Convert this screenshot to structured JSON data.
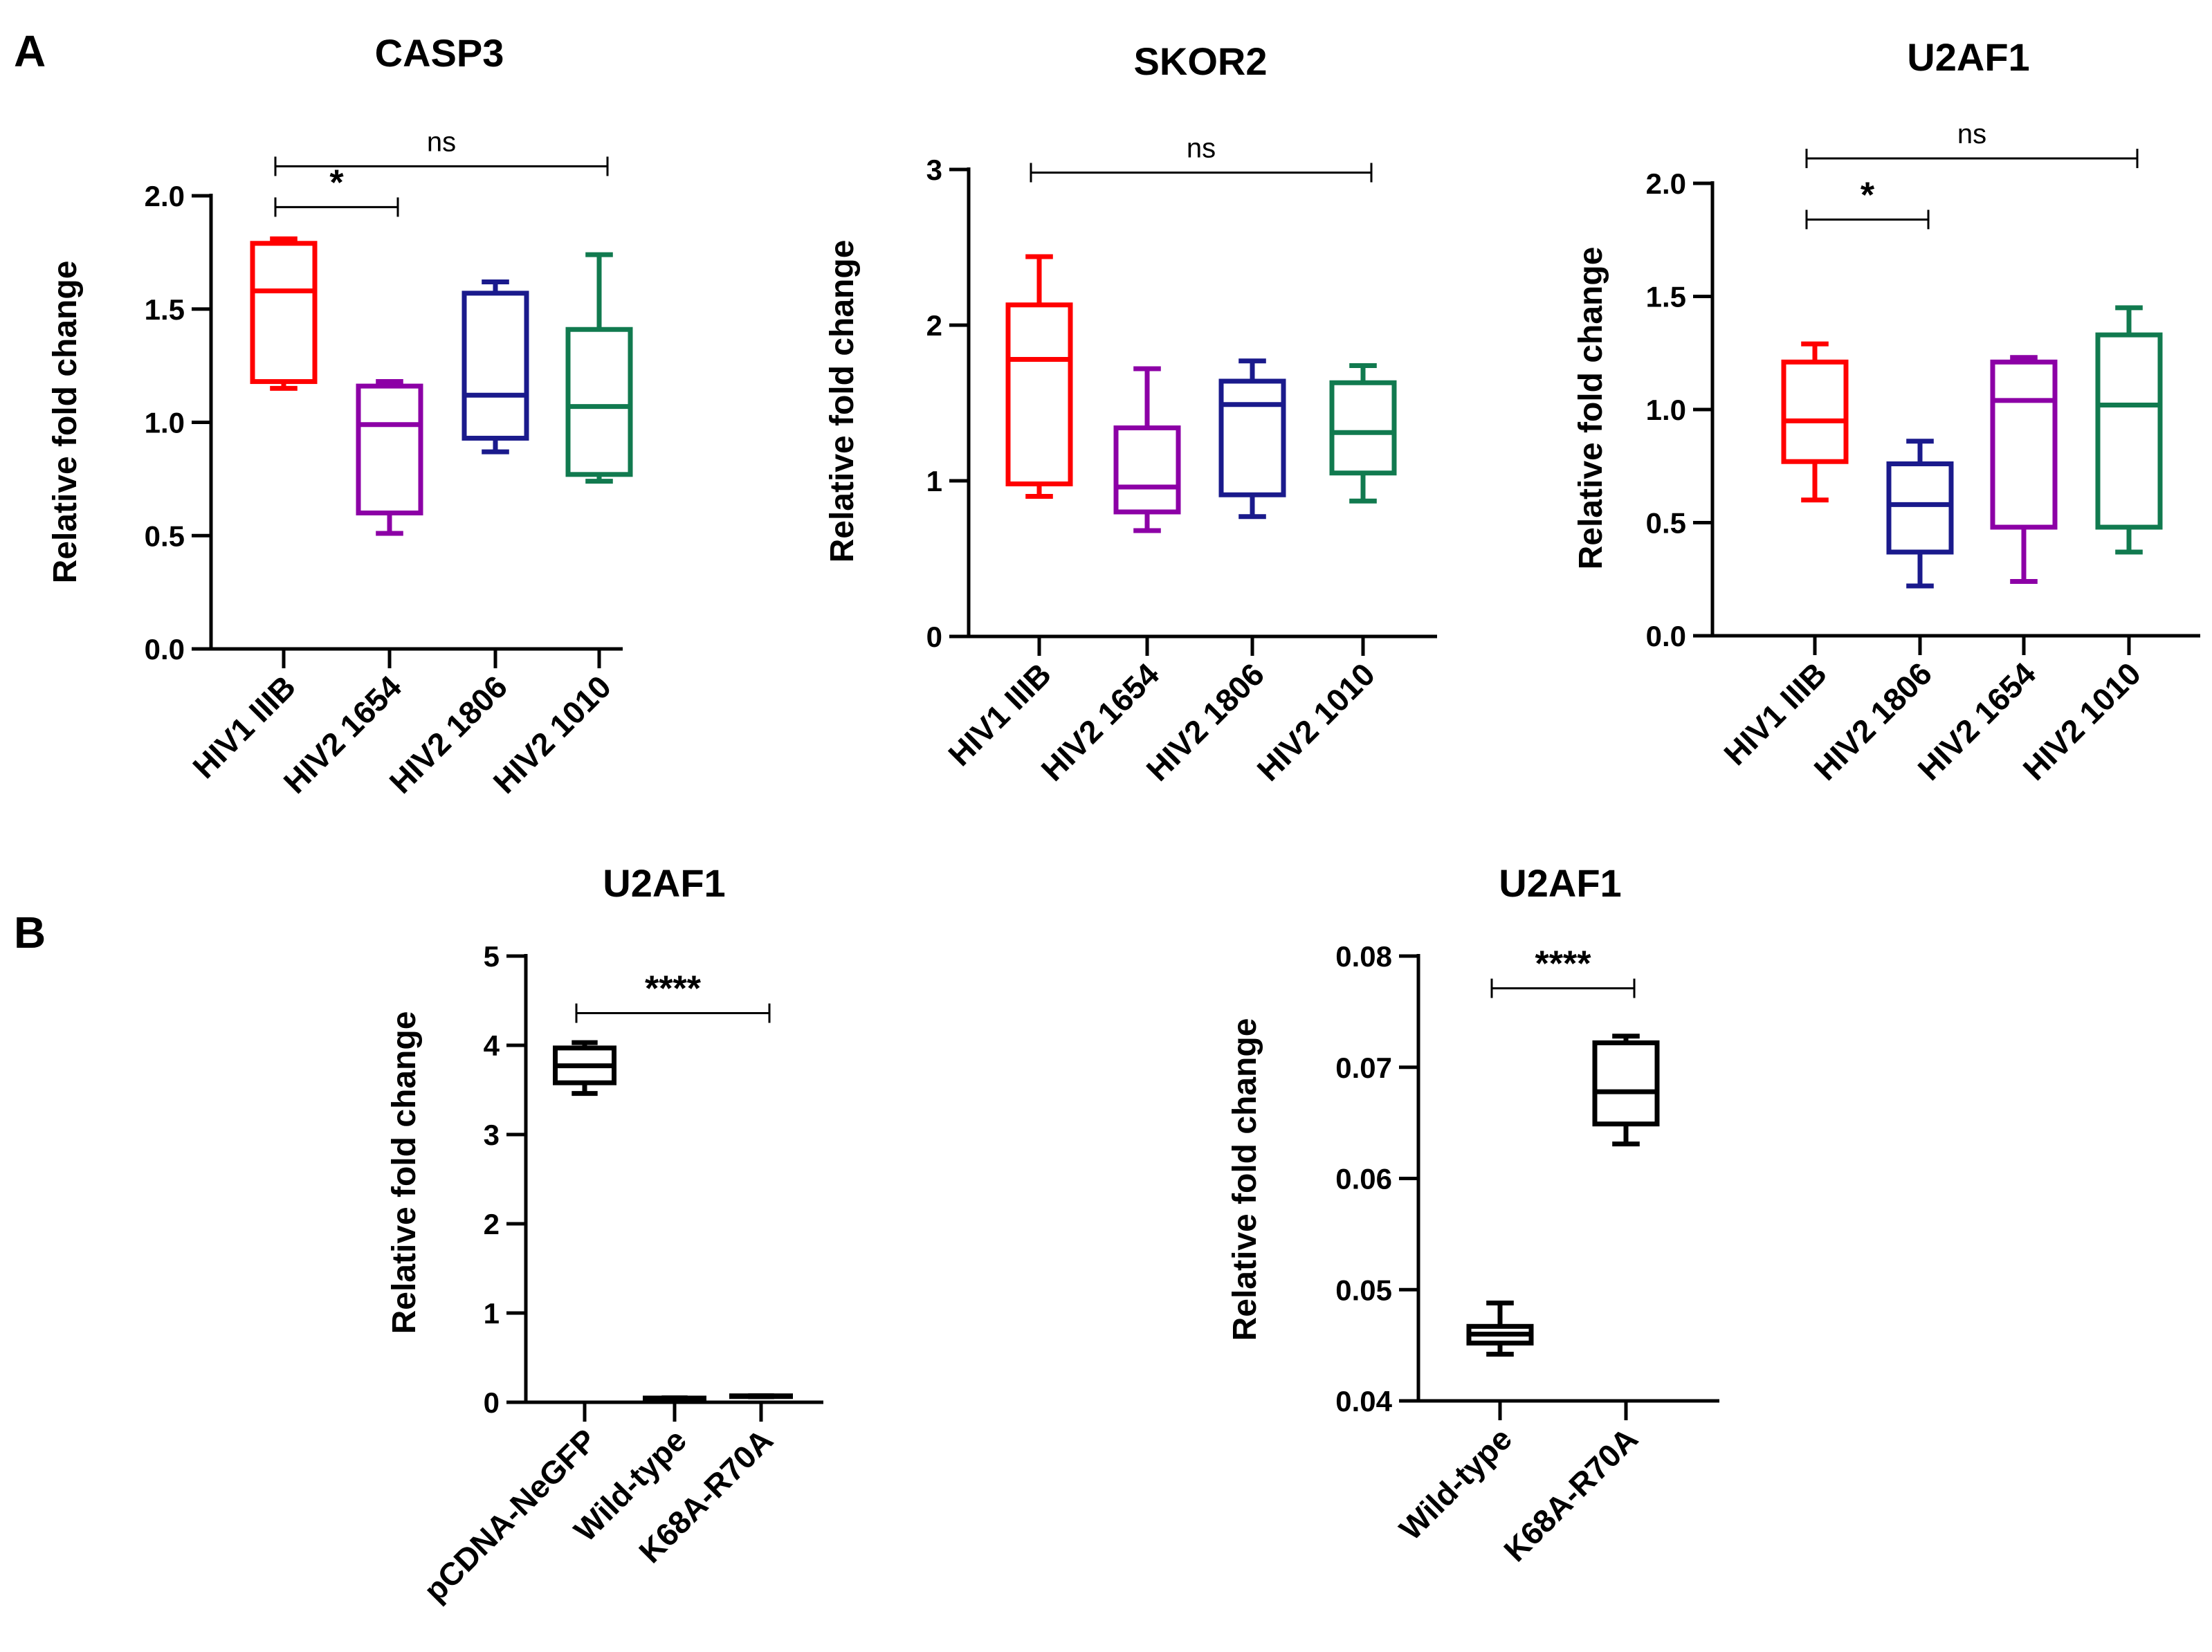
{
  "panels": [
    {
      "label": "A"
    },
    {
      "label": "B"
    }
  ],
  "colors": {
    "red": "#ff0000",
    "purple": "#8c00a6",
    "navy": "#1a1a8c",
    "green": "#117a4f",
    "black": "#000000"
  },
  "chart_data": [
    {
      "type": "box",
      "panel": "A",
      "title": "CASP3",
      "ylabel": "Relative fold change",
      "ylim": [
        0,
        2.0
      ],
      "yticks": [
        "0.0",
        "0.5",
        "1.0",
        "1.5",
        "2.0"
      ],
      "yticks_values": [
        0,
        0.5,
        1.0,
        1.5,
        2.0
      ],
      "categories": [
        "HIV1 IIIB",
        "HIV2 1654",
        "HIV2 1806",
        "HIV2 1010"
      ],
      "series": [
        {
          "name": "HIV1 IIIB",
          "color": "#ff0000",
          "min": 1.15,
          "q1": 1.18,
          "median": 1.58,
          "q3": 1.79,
          "max": 1.81
        },
        {
          "name": "HIV2 1654",
          "color": "#8c00a6",
          "min": 0.51,
          "q1": 0.6,
          "median": 0.99,
          "q3": 1.16,
          "max": 1.18
        },
        {
          "name": "HIV2 1806",
          "color": "#1a1a8c",
          "min": 0.87,
          "q1": 0.93,
          "median": 1.12,
          "q3": 1.57,
          "max": 1.62
        },
        {
          "name": "HIV2 1010",
          "color": "#117a4f",
          "min": 0.74,
          "q1": 0.77,
          "median": 1.07,
          "q3": 1.41,
          "max": 1.74
        }
      ],
      "significance": [
        {
          "from": 0,
          "to": 1,
          "label": "*",
          "y": 1.95
        },
        {
          "from": 0,
          "to": 3,
          "label": "ns",
          "y": 2.13
        }
      ]
    },
    {
      "type": "box",
      "panel": "A",
      "title": "SKOR2",
      "ylabel": "Relative fold change",
      "ylim": [
        0,
        3
      ],
      "yticks": [
        "0",
        "1",
        "2",
        "3"
      ],
      "yticks_values": [
        0,
        1,
        2,
        3
      ],
      "categories": [
        "HIV1 IIIB",
        "HIV2 1654",
        "HIV2 1806",
        "HIV2 1010"
      ],
      "series": [
        {
          "name": "HIV1 IIIB",
          "color": "#ff0000",
          "min": 0.9,
          "q1": 0.98,
          "median": 1.78,
          "q3": 2.13,
          "max": 2.44
        },
        {
          "name": "HIV2 1654",
          "color": "#8c00a6",
          "min": 0.68,
          "q1": 0.8,
          "median": 0.96,
          "q3": 1.34,
          "max": 1.72
        },
        {
          "name": "HIV2 1806",
          "color": "#1a1a8c",
          "min": 0.77,
          "q1": 0.91,
          "median": 1.49,
          "q3": 1.64,
          "max": 1.77
        },
        {
          "name": "HIV2 1010",
          "color": "#117a4f",
          "min": 0.87,
          "q1": 1.05,
          "median": 1.31,
          "q3": 1.63,
          "max": 1.74
        }
      ],
      "significance": [
        {
          "from": 0,
          "to": 3,
          "label": "ns",
          "y": 2.98
        }
      ]
    },
    {
      "type": "box",
      "panel": "A",
      "title": "U2AF1",
      "ylabel": "Relative fold change",
      "ylim": [
        0,
        2.0
      ],
      "yticks": [
        "0.0",
        "0.5",
        "1.0",
        "1.5",
        "2.0"
      ],
      "yticks_values": [
        0,
        0.5,
        1.0,
        1.5,
        2.0
      ],
      "categories": [
        "HIV1 IIIB",
        "HIV2 1806",
        "HIV2 1654",
        "HIV2 1010"
      ],
      "series": [
        {
          "name": "HIV1 IIIB",
          "color": "#ff0000",
          "min": 0.6,
          "q1": 0.77,
          "median": 0.95,
          "q3": 1.21,
          "max": 1.29
        },
        {
          "name": "HIV2 1806",
          "color": "#1a1a8c",
          "min": 0.22,
          "q1": 0.37,
          "median": 0.58,
          "q3": 0.76,
          "max": 0.86
        },
        {
          "name": "HIV2 1654",
          "color": "#8c00a6",
          "min": 0.24,
          "q1": 0.48,
          "median": 1.04,
          "q3": 1.21,
          "max": 1.23
        },
        {
          "name": "HIV2 1010",
          "color": "#117a4f",
          "min": 0.37,
          "q1": 0.48,
          "median": 1.02,
          "q3": 1.33,
          "max": 1.45
        }
      ],
      "significance": [
        {
          "from": 0,
          "to": 1,
          "label": "*",
          "y": 1.84
        },
        {
          "from": 0,
          "to": 3,
          "label": "ns",
          "y": 2.11
        }
      ]
    },
    {
      "type": "box",
      "panel": "B",
      "title": "U2AF1",
      "ylabel": "Relative fold change",
      "ylim": [
        0,
        5
      ],
      "yticks": [
        "0",
        "1",
        "2",
        "3",
        "4",
        "5"
      ],
      "yticks_values": [
        0,
        1,
        2,
        3,
        4,
        5
      ],
      "categories": [
        "pCDNA-NeGFP",
        "Wild-type",
        "K68A-R70A"
      ],
      "series": [
        {
          "name": "pCDNA-NeGFP",
          "color": "#000000",
          "min": 3.46,
          "q1": 3.58,
          "median": 3.77,
          "q3": 3.97,
          "max": 4.03
        },
        {
          "name": "Wild-type",
          "color": "#000000",
          "min": 0.045,
          "q1": 0.046,
          "median": 0.046,
          "q3": 0.047,
          "max": 0.049
        },
        {
          "name": "K68A-R70A",
          "color": "#000000",
          "min": 0.063,
          "q1": 0.065,
          "median": 0.068,
          "q3": 0.072,
          "max": 0.073
        }
      ],
      "significance": [
        {
          "from": 0,
          "to": 2,
          "label": "****",
          "y": 4.36
        }
      ]
    },
    {
      "type": "box",
      "panel": "B",
      "title": "U2AF1",
      "ylabel": "Relative fold change",
      "ylim": [
        0.04,
        0.08
      ],
      "yticks": [
        "0.04",
        "0.05",
        "0.06",
        "0.07",
        "0.08"
      ],
      "yticks_values": [
        0.04,
        0.05,
        0.06,
        0.07,
        0.08
      ],
      "categories": [
        "Wild-type",
        "K68A-R70A"
      ],
      "series": [
        {
          "name": "Wild-type",
          "color": "#000000",
          "min": 0.0442,
          "q1": 0.0452,
          "median": 0.046,
          "q3": 0.0467,
          "max": 0.0488
        },
        {
          "name": "K68A-R70A",
          "color": "#000000",
          "min": 0.0631,
          "q1": 0.0649,
          "median": 0.0678,
          "q3": 0.0722,
          "max": 0.0728
        }
      ],
      "significance": [
        {
          "from": 0,
          "to": 1,
          "label": "****",
          "y": 0.0771
        }
      ]
    }
  ]
}
